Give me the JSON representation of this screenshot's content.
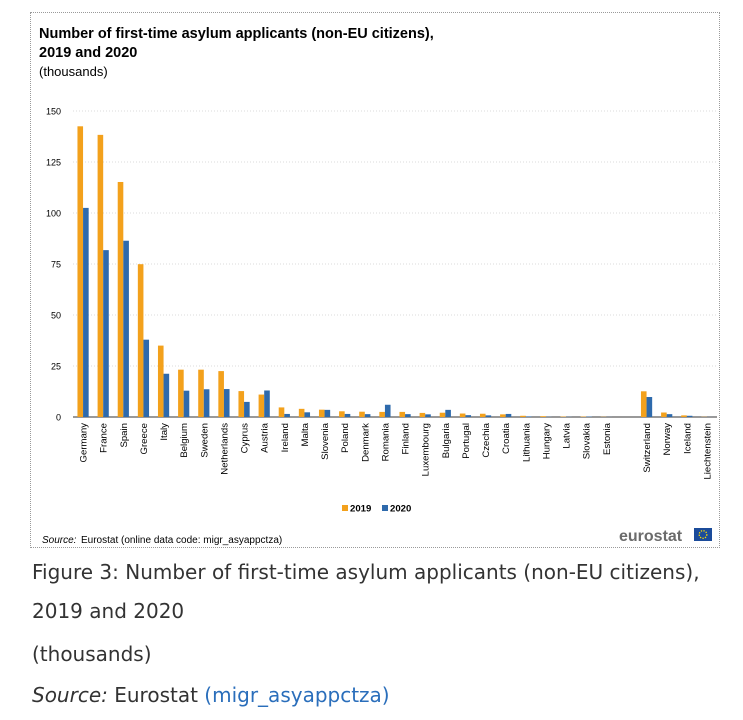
{
  "figure": {
    "title_line1": "Number of first-time asylum applicants (non-EU citizens),",
    "title_line2": "2019 and 2020",
    "subtitle": "(thousands)",
    "source_label": "Source:",
    "source_text": "Eurostat (online data code: migr_asyappctza)",
    "logo_text": "eurostat"
  },
  "caption": {
    "line1": "Figure 3: Number of first-time asylum applicants (non-EU citizens),",
    "line2": "2019 and 2020",
    "line3": "(thousands)",
    "source_label": "Source:",
    "source_text": "Eurostat",
    "source_link": "(migr_asyappctza)"
  },
  "colors": {
    "series_2019": "#f3a11c",
    "series_2020": "#2e6aac",
    "grid": "#d0d0d0",
    "axis": "#333333",
    "link": "#2a6ebb",
    "eu_flag": "#1b4b9a",
    "eu_stars": "#ffdd00"
  },
  "chart_data": {
    "type": "bar",
    "ylim": [
      0,
      150
    ],
    "yticks": [
      0,
      25,
      50,
      75,
      100,
      125,
      150
    ],
    "grid": true,
    "legend_position": "bottom-center",
    "categories": [
      "Germany",
      "France",
      "Spain",
      "Greece",
      "Italy",
      "Belgium",
      "Sweden",
      "Netherlands",
      "Cyprus",
      "Austria",
      "Ireland",
      "Malta",
      "Slovenia",
      "Poland",
      "Denmark",
      "Romania",
      "Finland",
      "Luxembourg",
      "Bulgaria",
      "Portugal",
      "Czechia",
      "Croatia",
      "Lithuania",
      "Hungary",
      "Latvia",
      "Slovakia",
      "Estonia",
      "",
      "Switzerland",
      "Norway",
      "Iceland",
      "Liechtenstein"
    ],
    "series": [
      {
        "name": "2019",
        "values": [
          142.5,
          138.3,
          115.2,
          74.9,
          35.0,
          23.2,
          23.2,
          22.5,
          12.7,
          11.0,
          4.7,
          4.0,
          3.6,
          2.8,
          2.6,
          2.5,
          2.5,
          2.0,
          2.1,
          1.7,
          1.6,
          1.3,
          0.6,
          0.4,
          0.2,
          0.2,
          0.1,
          null,
          12.6,
          2.2,
          0.8,
          0.1
        ]
      },
      {
        "name": "2020",
        "values": [
          102.5,
          81.8,
          86.4,
          37.9,
          21.2,
          12.9,
          13.6,
          13.7,
          7.4,
          13.0,
          1.5,
          2.3,
          3.5,
          1.5,
          1.4,
          6.0,
          1.4,
          1.3,
          3.5,
          0.9,
          0.8,
          1.5,
          0.3,
          0.1,
          0.1,
          0.2,
          0.05,
          null,
          9.8,
          1.4,
          0.6,
          0.03
        ]
      }
    ]
  }
}
